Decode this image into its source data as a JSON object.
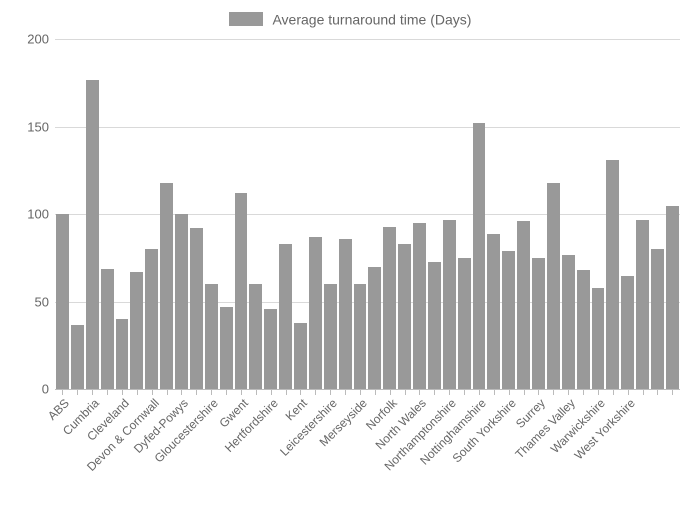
{
  "chart": {
    "type": "bar",
    "legend_label": "Average turnaround time (Days)",
    "legend_fontsize": 14,
    "legend_color": "#666666",
    "bar_color": "#999999",
    "background_color": "#ffffff",
    "grid_color": "#d9d9d9",
    "axis_color": "#bbbbbb",
    "text_color": "#666666",
    "ylim": [
      0,
      200
    ],
    "yticks": [
      0,
      50,
      100,
      150,
      200
    ],
    "ytick_fontsize": 13,
    "xlabel_fontsize": 12,
    "xlabel_rotation": -45,
    "label_every": 2,
    "categories": [
      "ABS",
      "",
      "Cumbria",
      "",
      "Cleveland",
      "",
      "Devon & Cornwall",
      "",
      "Dyfed-Powys",
      "",
      "Gloucestershire",
      "",
      "Gwent",
      "",
      "Hertfordshire",
      "",
      "Kent",
      "",
      "Leicestershire",
      "",
      "Merseyside",
      "",
      "Norfolk",
      "",
      "North Wales",
      "",
      "Northamptonshire",
      "",
      "Nottinghamshire",
      "",
      "South Yorkshire",
      "",
      "Surrey",
      "",
      "Thames Valley",
      "",
      "Warwickshire",
      "",
      "West Yorkshire",
      ""
    ],
    "values": [
      100,
      37,
      177,
      69,
      40,
      67,
      80,
      118,
      100,
      92,
      60,
      47,
      112,
      60,
      46,
      83,
      38,
      87,
      60,
      86,
      60,
      70,
      93,
      83,
      95,
      73,
      97,
      75,
      152,
      89,
      79,
      96,
      75,
      118,
      77,
      68,
      58,
      131,
      65,
      97,
      80,
      105
    ]
  }
}
